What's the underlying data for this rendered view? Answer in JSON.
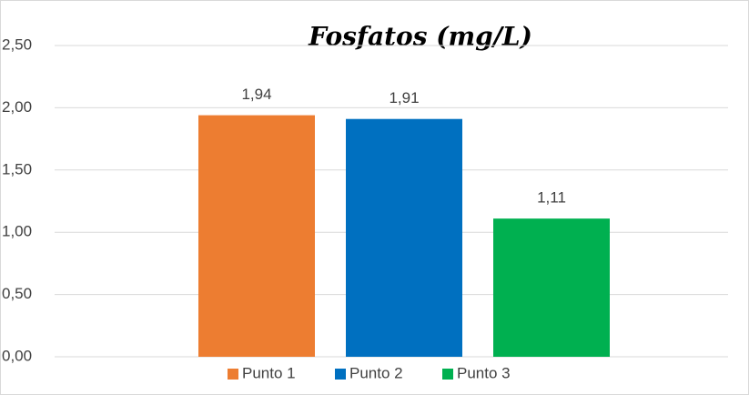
{
  "chart_data": {
    "type": "bar",
    "title": "Fosfatos (mg/L)",
    "series": [
      {
        "name": "Punto 1",
        "color": "#ed7d31",
        "values": [
          1.94
        ],
        "value_labels": [
          "1,94"
        ]
      },
      {
        "name": "Punto 2",
        "color": "#0070c0",
        "values": [
          1.91
        ],
        "value_labels": [
          "1,91"
        ]
      },
      {
        "name": "Punto 3",
        "color": "#00b050",
        "values": [
          1.11
        ],
        "value_labels": [
          "1,11"
        ]
      }
    ],
    "ylim": [
      0,
      2.5
    ],
    "yticks": [
      {
        "value": 0,
        "label": "0,00"
      },
      {
        "value": 0.5,
        "label": "0,50"
      },
      {
        "value": 1,
        "label": "1,00"
      },
      {
        "value": 1.5,
        "label": "1,50"
      },
      {
        "value": 2,
        "label": "2,00"
      },
      {
        "value": 2.5,
        "label": "2,50"
      }
    ],
    "grid": true,
    "legend": "bottom"
  }
}
